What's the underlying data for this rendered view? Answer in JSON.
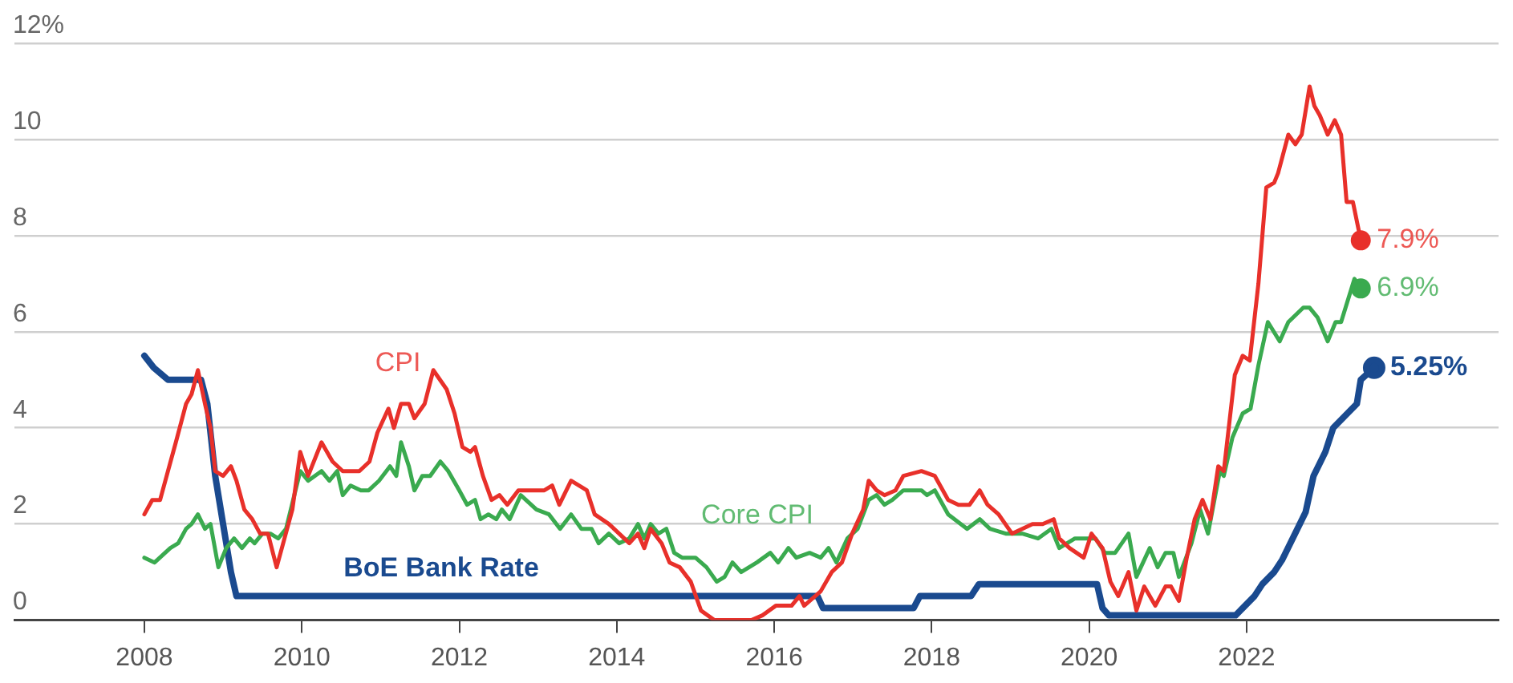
{
  "chart_data": {
    "type": "line",
    "ylim": [
      0,
      12
    ],
    "yticks": [
      0,
      2,
      4,
      6,
      8,
      10,
      {
        "value": 12,
        "label": "12%"
      }
    ],
    "xlim": [
      2006.35,
      2025.2
    ],
    "xticks": [
      2008,
      2010,
      2012,
      2014,
      2016,
      2018,
      2020,
      2022
    ],
    "grid": "y",
    "legend": false,
    "marker": "none",
    "line_style": "solid",
    "series": [
      {
        "name": "CPI",
        "color": "#e8302a",
        "x": [
          2008.0,
          2008.1,
          2008.2,
          2008.3,
          2008.4,
          2008.53,
          2008.6,
          2008.68,
          2008.77,
          2008.84,
          2008.9,
          2009.0,
          2009.1,
          2009.17,
          2009.27,
          2009.37,
          2009.47,
          2009.57,
          2009.68,
          2009.78,
          2009.88,
          2009.98,
          2010.08,
          2010.25,
          2010.39,
          2010.52,
          2010.73,
          2010.86,
          2010.96,
          2011.1,
          2011.17,
          2011.26,
          2011.36,
          2011.43,
          2011.56,
          2011.67,
          2011.84,
          2011.94,
          2012.04,
          2012.14,
          2012.2,
          2012.3,
          2012.41,
          2012.51,
          2012.61,
          2012.75,
          2013.08,
          2013.18,
          2013.27,
          2013.42,
          2013.62,
          2013.72,
          2013.9,
          2014.03,
          2014.16,
          2014.27,
          2014.35,
          2014.43,
          2014.57,
          2014.67,
          2014.8,
          2014.94,
          2015.07,
          2015.24,
          2015.34,
          2015.44,
          2015.58,
          2015.71,
          2015.85,
          2016.02,
          2016.22,
          2016.32,
          2016.38,
          2016.59,
          2016.73,
          2016.86,
          2016.99,
          2017.13,
          2017.2,
          2017.3,
          2017.4,
          2017.54,
          2017.64,
          2017.87,
          2018.04,
          2018.21,
          2018.34,
          2018.48,
          2018.61,
          2018.71,
          2018.85,
          2019.02,
          2019.15,
          2019.28,
          2019.41,
          2019.55,
          2019.62,
          2019.75,
          2019.93,
          2020.03,
          2020.17,
          2020.27,
          2020.37,
          2020.5,
          2020.6,
          2020.7,
          2020.84,
          2020.97,
          2021.04,
          2021.14,
          2021.24,
          2021.34,
          2021.44,
          2021.54,
          2021.64,
          2021.71,
          2021.85,
          2021.95,
          2022.04,
          2022.15,
          2022.25,
          2022.35,
          2022.4,
          2022.53,
          2022.62,
          2022.7,
          2022.8,
          2022.86,
          2022.93,
          2023.03,
          2023.12,
          2023.2,
          2023.27,
          2023.35,
          2023.45
        ],
        "values": [
          2.2,
          2.5,
          2.5,
          3.1,
          3.7,
          4.5,
          4.7,
          5.2,
          4.5,
          4.0,
          3.1,
          3.0,
          3.2,
          2.9,
          2.3,
          2.1,
          1.8,
          1.8,
          1.1,
          1.7,
          2.3,
          3.5,
          3.0,
          3.7,
          3.3,
          3.1,
          3.1,
          3.3,
          3.9,
          4.4,
          4.0,
          4.5,
          4.5,
          4.2,
          4.5,
          5.2,
          4.8,
          4.3,
          3.6,
          3.5,
          3.6,
          3.0,
          2.5,
          2.6,
          2.4,
          2.7,
          2.7,
          2.8,
          2.4,
          2.9,
          2.7,
          2.2,
          2.0,
          1.8,
          1.6,
          1.8,
          1.5,
          1.9,
          1.6,
          1.2,
          1.1,
          0.8,
          0.2,
          0.0,
          0.0,
          0.0,
          0.0,
          0.0,
          0.1,
          0.3,
          0.3,
          0.5,
          0.3,
          0.6,
          1.0,
          1.2,
          1.8,
          2.3,
          2.9,
          2.7,
          2.6,
          2.7,
          3.0,
          3.1,
          3.0,
          2.5,
          2.4,
          2.4,
          2.7,
          2.4,
          2.2,
          1.8,
          1.9,
          2.0,
          2.0,
          2.1,
          1.7,
          1.5,
          1.3,
          1.8,
          1.5,
          0.8,
          0.5,
          1.0,
          0.2,
          0.7,
          0.3,
          0.7,
          0.7,
          0.4,
          1.3,
          2.1,
          2.5,
          2.1,
          3.2,
          3.1,
          5.1,
          5.5,
          5.4,
          7.0,
          9.0,
          9.1,
          9.3,
          10.1,
          9.9,
          10.1,
          11.1,
          10.7,
          10.5,
          10.1,
          10.4,
          10.1,
          8.7,
          8.7,
          7.9
        ],
        "value_labels": [
          null,
          null,
          null,
          null,
          null,
          null,
          null,
          null,
          null,
          null,
          null,
          null,
          null,
          null,
          null,
          null,
          null,
          null,
          null,
          null,
          null,
          null,
          null,
          null,
          null,
          null,
          null,
          null,
          null,
          null,
          null,
          null,
          null,
          null,
          null,
          null,
          null,
          null,
          null,
          null,
          null,
          null,
          null,
          null,
          null,
          null,
          null,
          null,
          null,
          null,
          null,
          null,
          null,
          null,
          null,
          null,
          null,
          null,
          null,
          null,
          null,
          null,
          null,
          null,
          null,
          null,
          null,
          null,
          null,
          null,
          null,
          null,
          null,
          null,
          null,
          null,
          null,
          null,
          null,
          null,
          null,
          null,
          null,
          null,
          null,
          null,
          null,
          null,
          null,
          null,
          null,
          null,
          null,
          null,
          null,
          null,
          null,
          null,
          null,
          null,
          null,
          null,
          null,
          null,
          null,
          null,
          null,
          null,
          null,
          null,
          null,
          null,
          null,
          null,
          null,
          null,
          null,
          null,
          null,
          null,
          null,
          null,
          null,
          null,
          null,
          null,
          null,
          null,
          null,
          null,
          null,
          null,
          null,
          null,
          "7.9%"
        ]
      },
      {
        "name": "Core CPI",
        "color": "#3aaa4f",
        "x": [
          2008.0,
          2008.13,
          2008.23,
          2008.33,
          2008.43,
          2008.53,
          2008.6,
          2008.68,
          2008.77,
          2008.84,
          2008.94,
          2009.04,
          2009.14,
          2009.24,
          2009.34,
          2009.4,
          2009.5,
          2009.6,
          2009.7,
          2009.8,
          2009.98,
          2010.08,
          2010.25,
          2010.35,
          2010.45,
          2010.52,
          2010.62,
          2010.75,
          2010.85,
          2010.98,
          2011.12,
          2011.2,
          2011.26,
          2011.36,
          2011.43,
          2011.53,
          2011.63,
          2011.76,
          2011.86,
          2012.0,
          2012.1,
          2012.2,
          2012.27,
          2012.37,
          2012.47,
          2012.54,
          2012.64,
          2012.78,
          2012.98,
          2013.14,
          2013.28,
          2013.42,
          2013.55,
          2013.68,
          2013.77,
          2013.9,
          2014.03,
          2014.16,
          2014.27,
          2014.35,
          2014.43,
          2014.53,
          2014.63,
          2014.73,
          2014.83,
          2015.0,
          2015.14,
          2015.27,
          2015.37,
          2015.47,
          2015.58,
          2015.78,
          2015.95,
          2016.05,
          2016.18,
          2016.28,
          2016.45,
          2016.59,
          2016.69,
          2016.79,
          2016.93,
          2017.06,
          2017.2,
          2017.3,
          2017.4,
          2017.5,
          2017.64,
          2017.87,
          2017.94,
          2018.04,
          2018.21,
          2018.45,
          2018.61,
          2018.74,
          2018.94,
          2019.15,
          2019.35,
          2019.52,
          2019.62,
          2019.82,
          2019.95,
          2020.08,
          2020.2,
          2020.33,
          2020.5,
          2020.6,
          2020.77,
          2020.87,
          2020.97,
          2021.07,
          2021.14,
          2021.3,
          2021.41,
          2021.51,
          2021.66,
          2021.71,
          2021.82,
          2021.95,
          2022.05,
          2022.15,
          2022.27,
          2022.42,
          2022.53,
          2022.72,
          2022.8,
          2022.9,
          2023.03,
          2023.13,
          2023.2,
          2023.37,
          2023.45
        ],
        "values": [
          1.3,
          1.2,
          1.35,
          1.5,
          1.6,
          1.9,
          2.0,
          2.2,
          1.9,
          2.0,
          1.1,
          1.5,
          1.7,
          1.5,
          1.7,
          1.6,
          1.8,
          1.8,
          1.7,
          1.9,
          3.1,
          2.9,
          3.1,
          2.9,
          3.1,
          2.6,
          2.8,
          2.7,
          2.7,
          2.9,
          3.2,
          3.0,
          3.7,
          3.2,
          2.7,
          3.0,
          3.0,
          3.3,
          3.1,
          2.7,
          2.4,
          2.5,
          2.1,
          2.2,
          2.1,
          2.3,
          2.1,
          2.6,
          2.3,
          2.2,
          1.9,
          2.2,
          1.9,
          1.9,
          1.6,
          1.8,
          1.6,
          1.7,
          2.0,
          1.7,
          2.0,
          1.8,
          1.9,
          1.4,
          1.3,
          1.3,
          1.1,
          0.8,
          0.9,
          1.2,
          1.0,
          1.2,
          1.4,
          1.2,
          1.5,
          1.3,
          1.4,
          1.3,
          1.5,
          1.2,
          1.7,
          1.9,
          2.5,
          2.6,
          2.4,
          2.5,
          2.7,
          2.7,
          2.6,
          2.7,
          2.2,
          1.9,
          2.1,
          1.9,
          1.8,
          1.8,
          1.7,
          1.9,
          1.5,
          1.7,
          1.7,
          1.7,
          1.4,
          1.4,
          1.8,
          0.9,
          1.5,
          1.1,
          1.4,
          1.4,
          0.9,
          1.6,
          2.3,
          1.8,
          3.1,
          3.0,
          3.8,
          4.3,
          4.4,
          5.3,
          6.2,
          5.8,
          6.2,
          6.5,
          6.5,
          6.3,
          5.8,
          6.2,
          6.2,
          7.1,
          6.9
        ],
        "value_labels": [
          null,
          null,
          null,
          null,
          null,
          null,
          null,
          null,
          null,
          null,
          null,
          null,
          null,
          null,
          null,
          null,
          null,
          null,
          null,
          null,
          null,
          null,
          null,
          null,
          null,
          null,
          null,
          null,
          null,
          null,
          null,
          null,
          null,
          null,
          null,
          null,
          null,
          null,
          null,
          null,
          null,
          null,
          null,
          null,
          null,
          null,
          null,
          null,
          null,
          null,
          null,
          null,
          null,
          null,
          null,
          null,
          null,
          null,
          null,
          null,
          null,
          null,
          null,
          null,
          null,
          null,
          null,
          null,
          null,
          null,
          null,
          null,
          null,
          null,
          null,
          null,
          null,
          null,
          null,
          null,
          null,
          null,
          null,
          null,
          null,
          null,
          null,
          null,
          null,
          null,
          null,
          null,
          null,
          null,
          null,
          null,
          null,
          null,
          null,
          null,
          null,
          null,
          null,
          null,
          null,
          null,
          null,
          null,
          null,
          null,
          null,
          null,
          null,
          null,
          null,
          null,
          null,
          null,
          null,
          null,
          null,
          null,
          null,
          null,
          null,
          null,
          null,
          null,
          null,
          null,
          "6.9%"
        ]
      },
      {
        "name": "BoE Bank Rate",
        "color": "#1a4a8f",
        "x": [
          2008.0,
          2008.12,
          2008.3,
          2008.72,
          2008.8,
          2008.9,
          2009.0,
          2009.1,
          2009.17,
          2016.55,
          2016.62,
          2017.77,
          2017.85,
          2018.5,
          2018.6,
          2020.1,
          2020.17,
          2020.25,
          2021.86,
          2021.95,
          2022.1,
          2022.2,
          2022.35,
          2022.45,
          2022.6,
          2022.75,
          2022.85,
          2023.0,
          2023.1,
          2023.25,
          2023.4,
          2023.45,
          2023.62
        ],
        "values": [
          5.5,
          5.25,
          5.0,
          5.0,
          4.5,
          3.0,
          2.0,
          1.0,
          0.5,
          0.5,
          0.25,
          0.25,
          0.5,
          0.5,
          0.75,
          0.75,
          0.25,
          0.1,
          0.1,
          0.25,
          0.5,
          0.75,
          1.0,
          1.25,
          1.75,
          2.25,
          3.0,
          3.5,
          4.0,
          4.25,
          4.5,
          5.0,
          5.25
        ],
        "value_labels": [
          null,
          null,
          null,
          null,
          null,
          null,
          null,
          null,
          null,
          null,
          null,
          null,
          null,
          null,
          null,
          null,
          null,
          null,
          null,
          null,
          null,
          null,
          null,
          null,
          null,
          null,
          null,
          null,
          null,
          null,
          null,
          null,
          "5.25%"
        ]
      }
    ]
  }
}
